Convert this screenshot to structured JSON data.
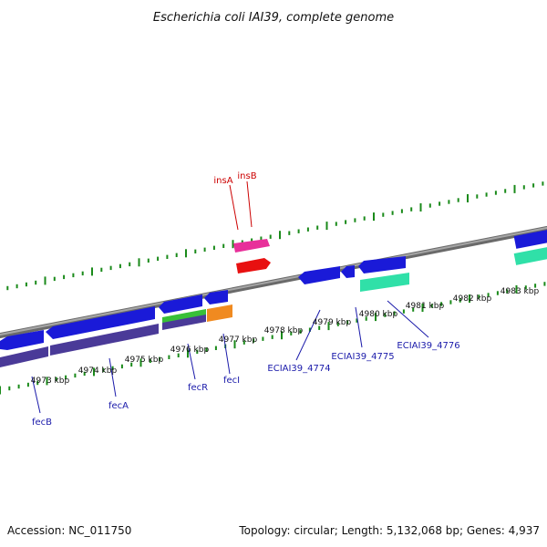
{
  "title": "Escherichia coli IAI39, complete genome",
  "footer": {
    "accession": "Accession: NC_011750",
    "summary": "Topology: circular; Length: 5,132,068 bp; Genes: 4,937"
  },
  "colors": {
    "backbone": "#8c8c8c",
    "ticks": "#1a8a1a",
    "gene_label_fwd": "#cc0000",
    "gene_label_rev": "#1a1aaa"
  },
  "kbp_labels": [
    "4973 kbp",
    "4974 kbp",
    "4975 kbp",
    "4976 kbp",
    "4977 kbp",
    "4978 kbp",
    "4979 kbp",
    "4980 kbp",
    "4981 kbp",
    "4982 kbp",
    "4983 kbp"
  ],
  "gene_labels": [
    "insA",
    "insB",
    "fecB",
    "fecA",
    "fecR",
    "fecI",
    "ECIAI39_4774",
    "ECIAI39_4775",
    "ECIAI39_4776"
  ]
}
